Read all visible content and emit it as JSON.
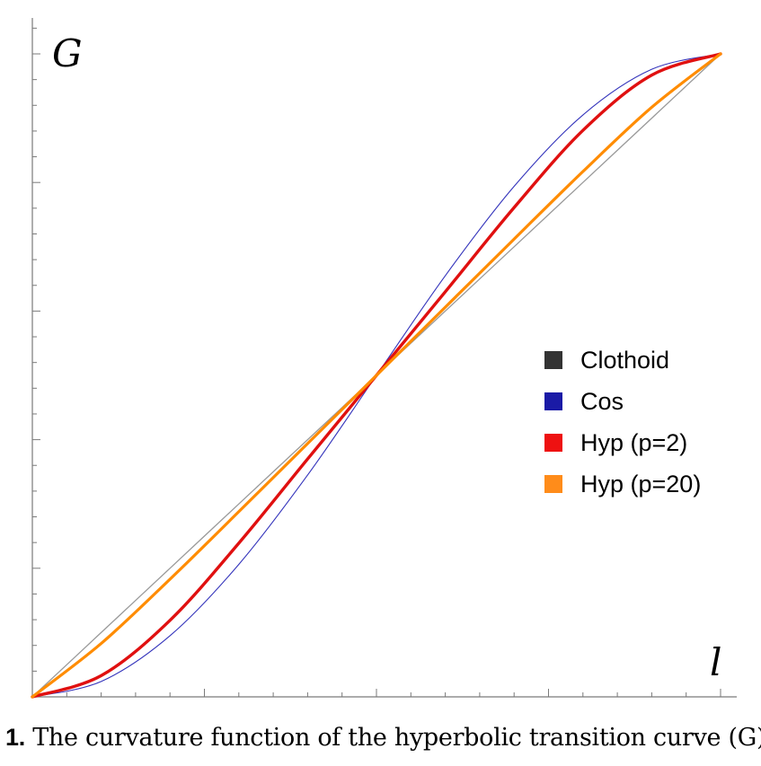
{
  "chart_data": {
    "type": "line",
    "xlabel": "l",
    "ylabel": "G",
    "xlim": [
      0,
      1
    ],
    "ylim": [
      0,
      1
    ],
    "grid": false,
    "legend_position": "right-middle",
    "series": [
      {
        "name": "Clothoid",
        "color": "#999999",
        "legend_color": "#333333",
        "x": [
          0,
          0.1,
          0.2,
          0.3,
          0.4,
          0.5,
          0.6,
          0.7,
          0.8,
          0.9,
          1
        ],
        "y": [
          0,
          0.1,
          0.2,
          0.3,
          0.4,
          0.5,
          0.6,
          0.7,
          0.8,
          0.9,
          1
        ]
      },
      {
        "name": "Cos",
        "color": "#3333bb",
        "legend_color": "#1a1aa6",
        "x": [
          0,
          0.1,
          0.2,
          0.3,
          0.4,
          0.5,
          0.6,
          0.7,
          0.8,
          0.9,
          1
        ],
        "y": [
          0,
          0.024,
          0.095,
          0.206,
          0.345,
          0.5,
          0.655,
          0.794,
          0.905,
          0.976,
          1
        ]
      },
      {
        "name": "Hyp (p=2)",
        "color": "#e01010",
        "legend_color": "#ee1111",
        "x": [
          0,
          0.1,
          0.2,
          0.3,
          0.4,
          0.5,
          0.6,
          0.7,
          0.8,
          0.9,
          1
        ],
        "y": [
          0,
          0.033,
          0.119,
          0.239,
          0.37,
          0.5,
          0.63,
          0.761,
          0.881,
          0.967,
          1
        ]
      },
      {
        "name": "Hyp (p=20)",
        "color": "#ff8c00",
        "legend_color": "#ff8c1a",
        "x": [
          0,
          0.1,
          0.2,
          0.3,
          0.4,
          0.5,
          0.6,
          0.7,
          0.8,
          0.9,
          1
        ],
        "y": [
          0,
          0.083,
          0.183,
          0.288,
          0.394,
          0.5,
          0.606,
          0.712,
          0.817,
          0.917,
          1
        ]
      }
    ]
  },
  "caption": {
    "number": "1.",
    "text": " The curvature function of the hyperbolic transition curve (G)"
  }
}
